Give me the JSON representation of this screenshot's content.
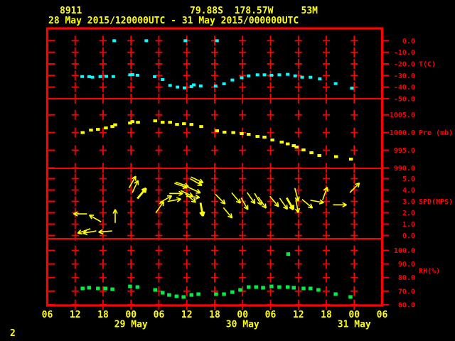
{
  "header": {
    "station_id": "8911",
    "location": "79.88S  178.57W     53M",
    "period": "28 May 2015/120000UTC - 31 May 2015/000000UTC"
  },
  "figure_number": "2",
  "colors": {
    "background": "#000000",
    "axis_red": "#ff0000",
    "header_yellow": "#ffff00",
    "temperature": "#00ffff",
    "pressure": "#ffff00",
    "wind": "#ffff00",
    "humidity": "#00ee44"
  },
  "chart_data": {
    "type": "scatter",
    "title": "Station 8911 meteogram, 28 May 2015 12UTC - 31 May 2015 00UTC",
    "x_axis": {
      "unit": "hours from 28 May 2015 06UTC",
      "range_hours": [
        0,
        72
      ],
      "tick_interval_hours": 6,
      "tick_labels": [
        "06",
        "12",
        "18",
        "00",
        "06",
        "12",
        "18",
        "00",
        "06",
        "12",
        "18",
        "00",
        "06"
      ],
      "day_labels": [
        {
          "text": "29 May",
          "hour": 18
        },
        {
          "text": "30 May",
          "hour": 42
        },
        {
          "text": "31 May",
          "hour": 66
        }
      ]
    },
    "panels": [
      {
        "name": "temperature",
        "unit_label": "T(C)",
        "yticks": [
          0.0,
          -10.0,
          -20.0,
          -30.0,
          -40.0,
          -50.0
        ],
        "color": "#00ffff",
        "points": [
          [
            7.5,
            -30.9
          ],
          [
            9,
            -31
          ],
          [
            9.7,
            -31.5
          ],
          [
            11.4,
            -31
          ],
          [
            12.7,
            -30.8
          ],
          [
            14.2,
            -30.9
          ],
          [
            17.8,
            -29.4
          ],
          [
            18.3,
            -29.2
          ],
          [
            19.4,
            -29.8
          ],
          [
            23.1,
            -31
          ],
          [
            24.8,
            -33.5
          ],
          [
            26.4,
            -38.6
          ],
          [
            28,
            -40
          ],
          [
            29.5,
            -40.7
          ],
          [
            31,
            -39.6
          ],
          [
            31.5,
            -38.1
          ],
          [
            33,
            -39
          ],
          [
            36.2,
            -39.1
          ],
          [
            38,
            -37.2
          ],
          [
            39.8,
            -33.9
          ],
          [
            41.8,
            -31.9
          ],
          [
            43.3,
            -30.3
          ],
          [
            45.2,
            -29.4
          ],
          [
            46.7,
            -29.4
          ],
          [
            48.2,
            -29.8
          ],
          [
            49.9,
            -29.4
          ],
          [
            51.7,
            -29
          ],
          [
            53.3,
            -30.3
          ],
          [
            54.8,
            -31.5
          ],
          [
            56.6,
            -31.5
          ],
          [
            58.6,
            -32.9
          ],
          [
            62,
            -37
          ],
          [
            65.5,
            -41
          ]
        ],
        "zero_flag_points": [
          [
            14.4,
            0
          ],
          [
            21.3,
            0
          ],
          [
            29.7,
            0
          ],
          [
            36.5,
            0
          ]
        ]
      },
      {
        "name": "pressure",
        "unit_label": "Pre (mb)",
        "yticks": [
          1005.0,
          1000.0,
          995.0,
          990.0
        ],
        "color": "#ffff00",
        "points": [
          [
            7.6,
            1000.0
          ],
          [
            9.4,
            1000.7
          ],
          [
            10.9,
            1000.9
          ],
          [
            12.6,
            1001.3
          ],
          [
            14,
            1001.7
          ],
          [
            14.6,
            1002.2
          ],
          [
            17.8,
            1002.7
          ],
          [
            18.3,
            1003.1
          ],
          [
            19.5,
            1002.9
          ],
          [
            23.2,
            1003.3
          ],
          [
            24.8,
            1002.9
          ],
          [
            26.4,
            1002.9
          ],
          [
            27.9,
            1002.3
          ],
          [
            29.4,
            1002.5
          ],
          [
            31,
            1002.3
          ],
          [
            33.1,
            1001.7
          ],
          [
            36.5,
            1000.5
          ],
          [
            38.1,
            1000.1
          ],
          [
            40,
            1000
          ],
          [
            41.8,
            999.7
          ],
          [
            43.3,
            999.5
          ],
          [
            45.2,
            998.9
          ],
          [
            46.7,
            998.7
          ],
          [
            48.4,
            997.9
          ],
          [
            50.4,
            997.3
          ],
          [
            51.7,
            996.8
          ],
          [
            53,
            996.3
          ],
          [
            53.6,
            995.9
          ],
          [
            55.1,
            995.1
          ],
          [
            56.8,
            994.3
          ],
          [
            58.5,
            993.5
          ],
          [
            62.1,
            993.2
          ],
          [
            65.3,
            992.5
          ]
        ]
      },
      {
        "name": "wind_speed",
        "unit_label": "SPD(MPS)",
        "yticks": [
          5.0,
          4.0,
          3.0,
          2.0,
          1.0,
          0.0
        ],
        "color": "#ffff00",
        "arrows": [
          {
            "h": 7.1,
            "spd": 1.9,
            "dir": 270
          },
          {
            "h": 7.9,
            "spd": 0.4,
            "dir": 250
          },
          {
            "h": 9.1,
            "spd": 0.3,
            "dir": 260
          },
          {
            "h": 10.3,
            "spd": 1.5,
            "dir": 300
          },
          {
            "h": 12.5,
            "spd": 0.35,
            "dir": 265
          },
          {
            "h": 14.6,
            "spd": 1.7,
            "dir": 0
          },
          {
            "h": 18.3,
            "spd": 4.7,
            "dir": 30
          },
          {
            "h": 18.9,
            "spd": 4.3,
            "dir": 25
          },
          {
            "h": 20.3,
            "spd": 3.7,
            "dir": 40,
            "bold": true
          },
          {
            "h": 24.2,
            "spd": 2.5,
            "dir": 35
          },
          {
            "h": 25.5,
            "spd": 3.2,
            "dir": 60
          },
          {
            "h": 27.3,
            "spd": 3.1,
            "dir": 80
          },
          {
            "h": 27.7,
            "spd": 3.7,
            "dir": 90
          },
          {
            "h": 28.7,
            "spd": 4.4,
            "dir": 110
          },
          {
            "h": 29,
            "spd": 4.5,
            "dir": 110
          },
          {
            "h": 30,
            "spd": 3.7,
            "dir": 115
          },
          {
            "h": 30.8,
            "spd": 3.3,
            "dir": 130
          },
          {
            "h": 31.3,
            "spd": 3.4,
            "dir": 95
          },
          {
            "h": 31.6,
            "spd": 4,
            "dir": 115
          },
          {
            "h": 32,
            "spd": 4.7,
            "dir": 120
          },
          {
            "h": 32.2,
            "spd": 4.9,
            "dir": 115
          },
          {
            "h": 33.2,
            "spd": 2.3,
            "dir": 170,
            "bold": true
          },
          {
            "h": 37.2,
            "spd": 3.2,
            "dir": 135
          },
          {
            "h": 38.8,
            "spd": 2,
            "dir": 140
          },
          {
            "h": 40.6,
            "spd": 3.3,
            "dir": 140
          },
          {
            "h": 42.4,
            "spd": 2.8,
            "dir": 150
          },
          {
            "h": 43.8,
            "spd": 3.3,
            "dir": 145
          },
          {
            "h": 45.3,
            "spd": 3.2,
            "dir": 150
          },
          {
            "h": 46.2,
            "spd": 2.9,
            "dir": 145
          },
          {
            "h": 48.8,
            "spd": 3,
            "dir": 140
          },
          {
            "h": 50.8,
            "spd": 2.8,
            "dir": 145
          },
          {
            "h": 52.2,
            "spd": 2.8,
            "dir": 150,
            "bold": true
          },
          {
            "h": 53.6,
            "spd": 3.6,
            "dir": 165
          },
          {
            "h": 53.7,
            "spd": 2.6,
            "dir": 170
          },
          {
            "h": 55.9,
            "spd": 2.8,
            "dir": 130
          },
          {
            "h": 58,
            "spd": 3,
            "dir": 100
          },
          {
            "h": 59.7,
            "spd": 3.7,
            "dir": 20
          },
          {
            "h": 62.9,
            "spd": 2.7,
            "dir": 90
          },
          {
            "h": 66.1,
            "spd": 4.2,
            "dir": 45
          }
        ]
      },
      {
        "name": "relative_humidity",
        "unit_label": "RH(%)",
        "yticks": [
          100.0,
          90.0,
          80.0,
          70.0,
          60.0
        ],
        "color": "#00ee44",
        "points": [
          [
            7.6,
            72
          ],
          [
            9,
            72.5
          ],
          [
            10.9,
            72
          ],
          [
            12.5,
            72
          ],
          [
            14,
            71.4
          ],
          [
            17.8,
            73.5
          ],
          [
            19.4,
            73
          ],
          [
            23.2,
            70.9
          ],
          [
            24.8,
            68.8
          ],
          [
            26.2,
            67.2
          ],
          [
            27.8,
            66.2
          ],
          [
            29.3,
            65.7
          ],
          [
            31,
            67.2
          ],
          [
            32.5,
            67.8
          ],
          [
            36.3,
            67.8
          ],
          [
            38,
            67.8
          ],
          [
            39.8,
            69.3
          ],
          [
            41.5,
            70.9
          ],
          [
            43.3,
            73
          ],
          [
            44.9,
            73
          ],
          [
            46.4,
            72.5
          ],
          [
            48.2,
            73.5
          ],
          [
            49.9,
            73
          ],
          [
            51.7,
            73
          ],
          [
            53,
            72.5
          ],
          [
            55.1,
            72
          ],
          [
            56.6,
            72
          ],
          [
            58.3,
            70.9
          ],
          [
            62,
            67.8
          ],
          [
            65.2,
            65.7
          ]
        ],
        "outlier_points": [
          [
            51.8,
            97.3
          ]
        ]
      }
    ]
  }
}
